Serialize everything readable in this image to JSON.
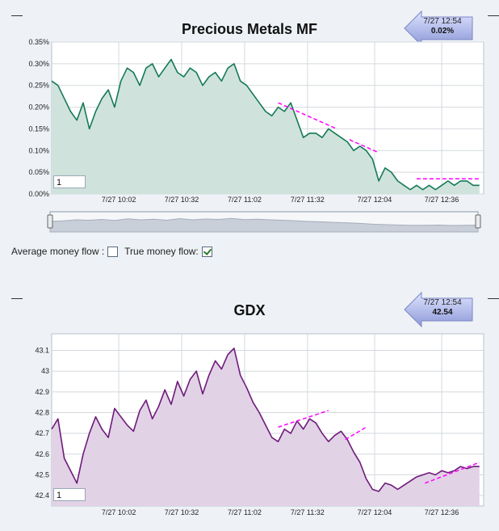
{
  "chart_data": [
    {
      "type": "area",
      "title": "Precious Metals MF",
      "badge_time": "7/27 12:54",
      "badge_value": "0.02%",
      "zoom_value": "1",
      "color": "#157a55",
      "fill": "#cfe3dc",
      "ylim": [
        0,
        0.35
      ],
      "yticks": [
        "0.00%",
        "0.05%",
        "0.10%",
        "0.15%",
        "0.20%",
        "0.25%",
        "0.30%",
        "0.35%"
      ],
      "xticks": [
        "7/27 10:02",
        "7/27 10:32",
        "7/27 11:02",
        "7/27 11:32",
        "7/27 12:04",
        "7/27 12:36"
      ],
      "x": [
        "09:30",
        "09:33",
        "09:36",
        "09:39",
        "09:42",
        "09:45",
        "09:48",
        "09:51",
        "09:54",
        "09:57",
        "10:00",
        "10:03",
        "10:06",
        "10:09",
        "10:12",
        "10:15",
        "10:18",
        "10:21",
        "10:24",
        "10:27",
        "10:30",
        "10:33",
        "10:36",
        "10:39",
        "10:42",
        "10:45",
        "10:48",
        "10:51",
        "10:54",
        "10:57",
        "11:00",
        "11:03",
        "11:06",
        "11:09",
        "11:12",
        "11:15",
        "11:18",
        "11:21",
        "11:24",
        "11:27",
        "11:30",
        "11:33",
        "11:36",
        "11:39",
        "11:42",
        "11:45",
        "11:48",
        "11:51",
        "11:54",
        "11:57",
        "12:00",
        "12:03",
        "12:06",
        "12:09",
        "12:12",
        "12:15",
        "12:18",
        "12:21",
        "12:24",
        "12:27",
        "12:30",
        "12:33",
        "12:36",
        "12:39",
        "12:42",
        "12:45",
        "12:48",
        "12:51",
        "12:54"
      ],
      "values": [
        0.26,
        0.25,
        0.22,
        0.19,
        0.17,
        0.21,
        0.15,
        0.19,
        0.22,
        0.24,
        0.2,
        0.26,
        0.29,
        0.28,
        0.25,
        0.29,
        0.3,
        0.27,
        0.29,
        0.31,
        0.28,
        0.27,
        0.29,
        0.28,
        0.25,
        0.27,
        0.28,
        0.26,
        0.29,
        0.3,
        0.26,
        0.25,
        0.23,
        0.21,
        0.19,
        0.18,
        0.2,
        0.19,
        0.21,
        0.17,
        0.13,
        0.14,
        0.14,
        0.13,
        0.15,
        0.14,
        0.13,
        0.12,
        0.1,
        0.11,
        0.1,
        0.08,
        0.03,
        0.06,
        0.05,
        0.03,
        0.02,
        0.01,
        0.02,
        0.01,
        0.02,
        0.01,
        0.02,
        0.03,
        0.02,
        0.03,
        0.03,
        0.02,
        0.02
      ],
      "trendlines": [
        {
          "x": [
            "11:18",
            "11:46"
          ],
          "y": [
            0.21,
            0.15
          ]
        },
        {
          "x": [
            "11:52",
            "12:06"
          ],
          "y": [
            0.125,
            0.095
          ]
        },
        {
          "x": [
            "12:24",
            "12:54"
          ],
          "y": [
            0.035,
            0.035
          ]
        }
      ]
    },
    {
      "type": "area",
      "title": "GDX",
      "badge_time": "7/27 12:54",
      "badge_value": "42.54",
      "zoom_value": "1",
      "color": "#6e1a7a",
      "fill": "#e1d2e6",
      "ylim": [
        42.35,
        43.18
      ],
      "yticks": [
        "42.4",
        "42.5",
        "42.6",
        "42.7",
        "42.8",
        "42.9",
        "43",
        "43.1"
      ],
      "xticks": [
        "7/27 10:02",
        "7/27 10:32",
        "7/27 11:02",
        "7/27 11:32",
        "7/27 12:04",
        "7/27 12:36"
      ],
      "x": [
        "09:30",
        "09:33",
        "09:36",
        "09:39",
        "09:42",
        "09:45",
        "09:48",
        "09:51",
        "09:54",
        "09:57",
        "10:00",
        "10:03",
        "10:06",
        "10:09",
        "10:12",
        "10:15",
        "10:18",
        "10:21",
        "10:24",
        "10:27",
        "10:30",
        "10:33",
        "10:36",
        "10:39",
        "10:42",
        "10:45",
        "10:48",
        "10:51",
        "10:54",
        "10:57",
        "11:00",
        "11:03",
        "11:06",
        "11:09",
        "11:12",
        "11:15",
        "11:18",
        "11:21",
        "11:24",
        "11:27",
        "11:30",
        "11:33",
        "11:36",
        "11:39",
        "11:42",
        "11:45",
        "11:48",
        "11:51",
        "11:54",
        "11:57",
        "12:00",
        "12:03",
        "12:06",
        "12:09",
        "12:12",
        "12:15",
        "12:18",
        "12:21",
        "12:24",
        "12:27",
        "12:30",
        "12:33",
        "12:36",
        "12:39",
        "12:42",
        "12:45",
        "12:48",
        "12:51",
        "12:54"
      ],
      "values": [
        42.72,
        42.77,
        42.58,
        42.52,
        42.46,
        42.6,
        42.7,
        42.78,
        42.72,
        42.68,
        42.82,
        42.78,
        42.74,
        42.71,
        42.81,
        42.86,
        42.77,
        42.83,
        42.91,
        42.84,
        42.95,
        42.88,
        42.96,
        43.0,
        42.89,
        42.98,
        43.05,
        43.01,
        43.08,
        43.11,
        42.98,
        42.92,
        42.85,
        42.8,
        42.74,
        42.68,
        42.66,
        42.72,
        42.7,
        42.76,
        42.72,
        42.77,
        42.75,
        42.7,
        42.66,
        42.69,
        42.71,
        42.67,
        42.61,
        42.56,
        42.48,
        42.43,
        42.42,
        42.46,
        42.45,
        42.43,
        42.45,
        42.47,
        42.49,
        42.5,
        42.51,
        42.5,
        42.52,
        42.51,
        42.52,
        42.54,
        42.53,
        42.54,
        42.54
      ],
      "trendlines": [
        {
          "x": [
            "11:18",
            "11:42"
          ],
          "y": [
            42.73,
            42.81
          ]
        },
        {
          "x": [
            "11:50",
            "12:00"
          ],
          "y": [
            42.67,
            42.73
          ]
        },
        {
          "x": [
            "12:28",
            "12:54"
          ],
          "y": [
            42.46,
            42.56
          ]
        }
      ]
    }
  ],
  "navigator": {
    "values": [
      0.52,
      0.55,
      0.6,
      0.58,
      0.62,
      0.57,
      0.65,
      0.6,
      0.63,
      0.58,
      0.66,
      0.6,
      0.64,
      0.62,
      0.67,
      0.61,
      0.63,
      0.6,
      0.58,
      0.55,
      0.52,
      0.5,
      0.47,
      0.45,
      0.42,
      0.38,
      0.36,
      0.34,
      0.33,
      0.33,
      0.34,
      0.32,
      0.33,
      0.34
    ]
  },
  "controls": {
    "average_label": "Average money flow :",
    "true_label": "True money flow:",
    "average_checked": false,
    "true_checked": true
  }
}
